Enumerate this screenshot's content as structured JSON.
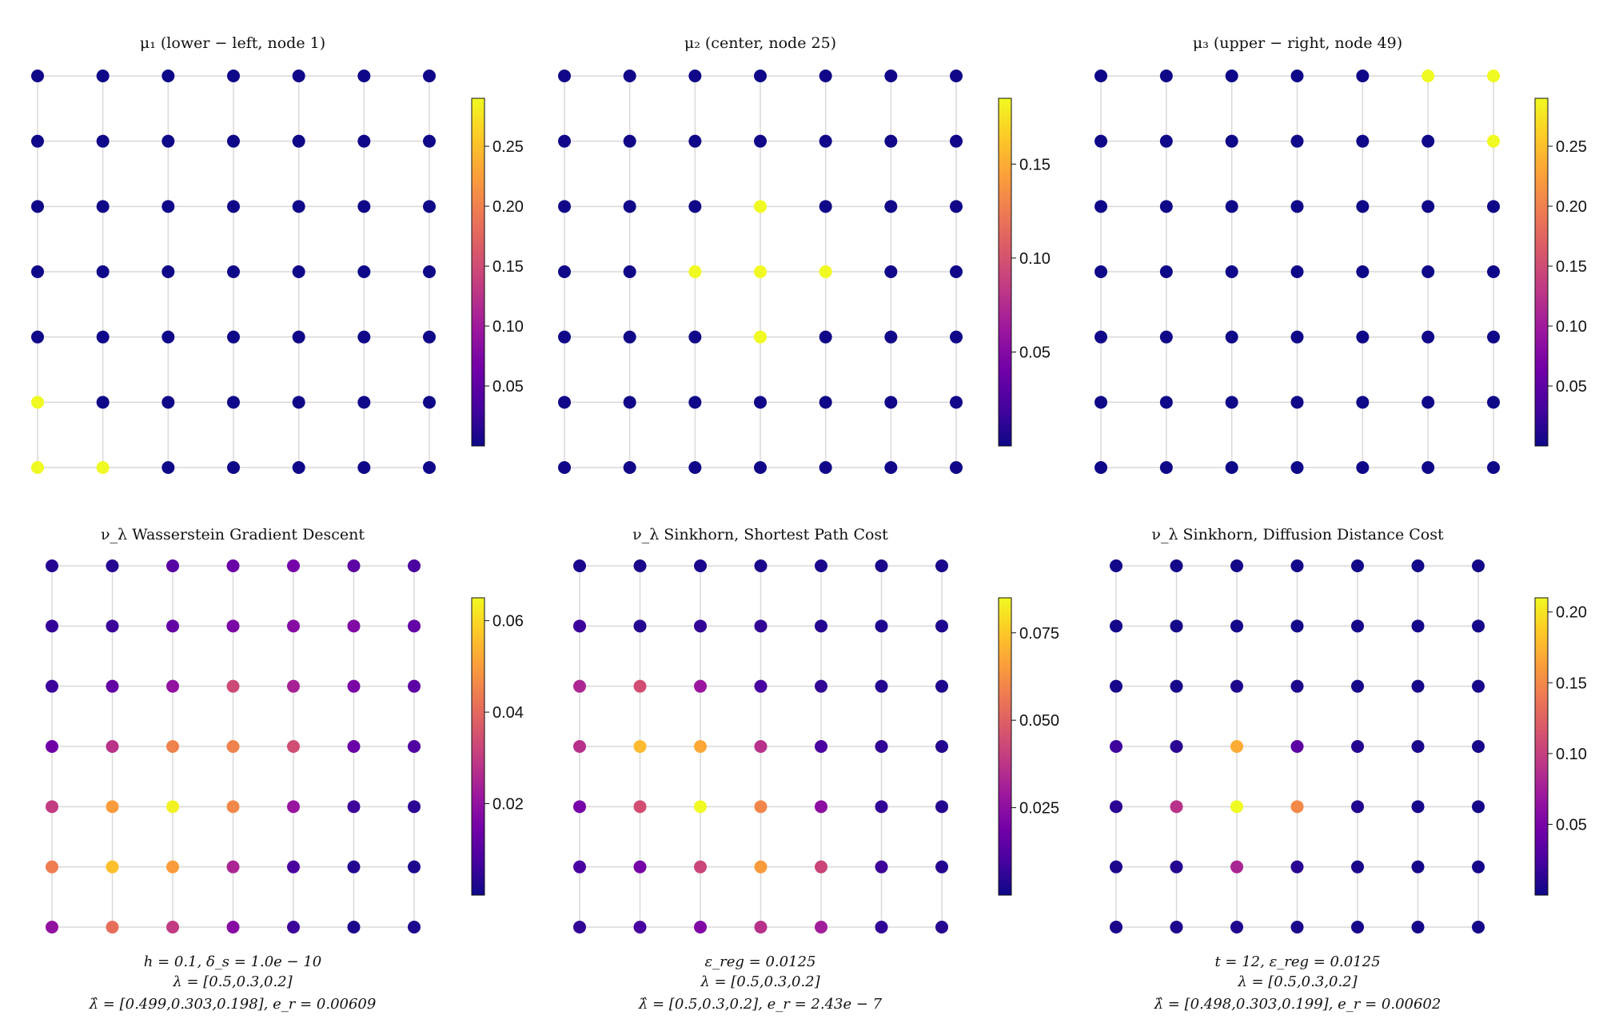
{
  "colormap": [
    "#0d0887",
    "#46039f",
    "#7201a8",
    "#9c179e",
    "#bd3786",
    "#d8576b",
    "#ed7953",
    "#fb9f3a",
    "#fdca26",
    "#f0f921"
  ],
  "chart_data": [
    {
      "type": "heatmap",
      "title": "μ₁ (lower − left, node 1)",
      "grid_size": 7,
      "clim": [
        0,
        0.29
      ],
      "colorbar_ticks": [
        "0.05",
        "0.10",
        "0.15",
        "0.20",
        "0.25"
      ],
      "values": [
        [
          0.001,
          0.001,
          0.001,
          0.001,
          0.001,
          0.001,
          0.001
        ],
        [
          0.001,
          0.001,
          0.001,
          0.001,
          0.001,
          0.001,
          0.001
        ],
        [
          0.001,
          0.001,
          0.001,
          0.001,
          0.001,
          0.001,
          0.001
        ],
        [
          0.001,
          0.001,
          0.001,
          0.001,
          0.001,
          0.001,
          0.001
        ],
        [
          0.001,
          0.001,
          0.001,
          0.001,
          0.001,
          0.001,
          0.001
        ],
        [
          0.29,
          0.001,
          0.001,
          0.001,
          0.001,
          0.001,
          0.001
        ],
        [
          0.29,
          0.29,
          0.001,
          0.001,
          0.001,
          0.001,
          0.001
        ]
      ],
      "notes": []
    },
    {
      "type": "heatmap",
      "title": "μ₂ (center, node 25)",
      "grid_size": 7,
      "clim": [
        0,
        0.185
      ],
      "colorbar_ticks": [
        "0.05",
        "0.10",
        "0.15"
      ],
      "values": [
        [
          0.001,
          0.001,
          0.001,
          0.001,
          0.001,
          0.001,
          0.001
        ],
        [
          0.001,
          0.001,
          0.001,
          0.001,
          0.001,
          0.001,
          0.001
        ],
        [
          0.001,
          0.001,
          0.001,
          0.185,
          0.001,
          0.001,
          0.001
        ],
        [
          0.001,
          0.001,
          0.185,
          0.185,
          0.185,
          0.001,
          0.001
        ],
        [
          0.001,
          0.001,
          0.001,
          0.185,
          0.001,
          0.001,
          0.001
        ],
        [
          0.001,
          0.001,
          0.001,
          0.001,
          0.001,
          0.001,
          0.001
        ],
        [
          0.001,
          0.001,
          0.001,
          0.001,
          0.001,
          0.001,
          0.001
        ]
      ],
      "notes": []
    },
    {
      "type": "heatmap",
      "title": "μ₃ (upper − right, node 49)",
      "grid_size": 7,
      "clim": [
        0,
        0.29
      ],
      "colorbar_ticks": [
        "0.05",
        "0.10",
        "0.15",
        "0.20",
        "0.25"
      ],
      "values": [
        [
          0.001,
          0.001,
          0.001,
          0.001,
          0.001,
          0.29,
          0.29
        ],
        [
          0.001,
          0.001,
          0.001,
          0.001,
          0.001,
          0.001,
          0.29
        ],
        [
          0.001,
          0.001,
          0.001,
          0.001,
          0.001,
          0.001,
          0.001
        ],
        [
          0.001,
          0.001,
          0.001,
          0.001,
          0.001,
          0.001,
          0.001
        ],
        [
          0.001,
          0.001,
          0.001,
          0.001,
          0.001,
          0.001,
          0.001
        ],
        [
          0.001,
          0.001,
          0.001,
          0.001,
          0.001,
          0.001,
          0.001
        ],
        [
          0.001,
          0.001,
          0.001,
          0.001,
          0.001,
          0.001,
          0.001
        ]
      ],
      "notes": []
    },
    {
      "type": "heatmap",
      "title": "ν_λ Wasserstein Gradient Descent",
      "grid_size": 7,
      "clim": [
        0,
        0.065
      ],
      "colorbar_ticks": [
        "0.02",
        "0.04",
        "0.06"
      ],
      "values": [
        [
          0.003,
          0.003,
          0.01,
          0.013,
          0.015,
          0.011,
          0.008
        ],
        [
          0.005,
          0.006,
          0.012,
          0.016,
          0.018,
          0.017,
          0.012
        ],
        [
          0.006,
          0.012,
          0.02,
          0.033,
          0.024,
          0.016,
          0.011
        ],
        [
          0.014,
          0.028,
          0.045,
          0.045,
          0.034,
          0.013,
          0.009
        ],
        [
          0.03,
          0.05,
          0.064,
          0.046,
          0.021,
          0.006,
          0.004
        ],
        [
          0.044,
          0.056,
          0.05,
          0.025,
          0.008,
          0.003,
          0.002
        ],
        [
          0.02,
          0.041,
          0.03,
          0.018,
          0.006,
          0.002,
          0.002
        ]
      ],
      "notes": [
        "h = 0.1, δ_s = 1.0e − 10",
        "λ = [0.5,0.3,0.2]",
        "λ̂ = [0.499,0.303,0.198],    e_r = 0.00609"
      ]
    },
    {
      "type": "heatmap",
      "title": "ν_λ Sinkhorn, Shortest Path Cost",
      "grid_size": 7,
      "clim": [
        0,
        0.085
      ],
      "colorbar_ticks": [
        "0.025",
        "0.050",
        "0.075"
      ],
      "values": [
        [
          0.002,
          0.002,
          0.002,
          0.002,
          0.002,
          0.002,
          0.002
        ],
        [
          0.008,
          0.004,
          0.006,
          0.006,
          0.004,
          0.003,
          0.003
        ],
        [
          0.033,
          0.045,
          0.028,
          0.01,
          0.006,
          0.004,
          0.003
        ],
        [
          0.036,
          0.072,
          0.068,
          0.036,
          0.01,
          0.006,
          0.004
        ],
        [
          0.02,
          0.045,
          0.085,
          0.06,
          0.025,
          0.006,
          0.004
        ],
        [
          0.01,
          0.02,
          0.042,
          0.065,
          0.042,
          0.008,
          0.004
        ],
        [
          0.006,
          0.01,
          0.022,
          0.036,
          0.03,
          0.006,
          0.004
        ]
      ],
      "notes": [
        "ε_reg = 0.0125",
        "λ = [0.5,0.3,0.2]",
        "λ̂ = [0.5,0.3,0.2],    e_r = 2.43e − 7"
      ]
    },
    {
      "type": "heatmap",
      "title": "ν_λ Sinkhorn, Diffusion Distance Cost",
      "grid_size": 7,
      "clim": [
        0,
        0.21
      ],
      "colorbar_ticks": [
        "0.05",
        "0.10",
        "0.15",
        "0.20"
      ],
      "values": [
        [
          0.002,
          0.002,
          0.002,
          0.002,
          0.002,
          0.002,
          0.002
        ],
        [
          0.003,
          0.003,
          0.003,
          0.003,
          0.003,
          0.003,
          0.003
        ],
        [
          0.004,
          0.004,
          0.006,
          0.006,
          0.004,
          0.004,
          0.004
        ],
        [
          0.02,
          0.012,
          0.17,
          0.035,
          0.01,
          0.005,
          0.004
        ],
        [
          0.012,
          0.09,
          0.21,
          0.15,
          0.008,
          0.004,
          0.003
        ],
        [
          0.006,
          0.01,
          0.08,
          0.012,
          0.005,
          0.003,
          0.003
        ],
        [
          0.005,
          0.006,
          0.008,
          0.005,
          0.004,
          0.003,
          0.003
        ]
      ],
      "notes": [
        "t = 12, ε_reg = 0.0125",
        "λ = [0.5,0.3,0.2]",
        "λ̂ = [0.498,0.303,0.199],    e_r = 0.00602"
      ]
    }
  ]
}
